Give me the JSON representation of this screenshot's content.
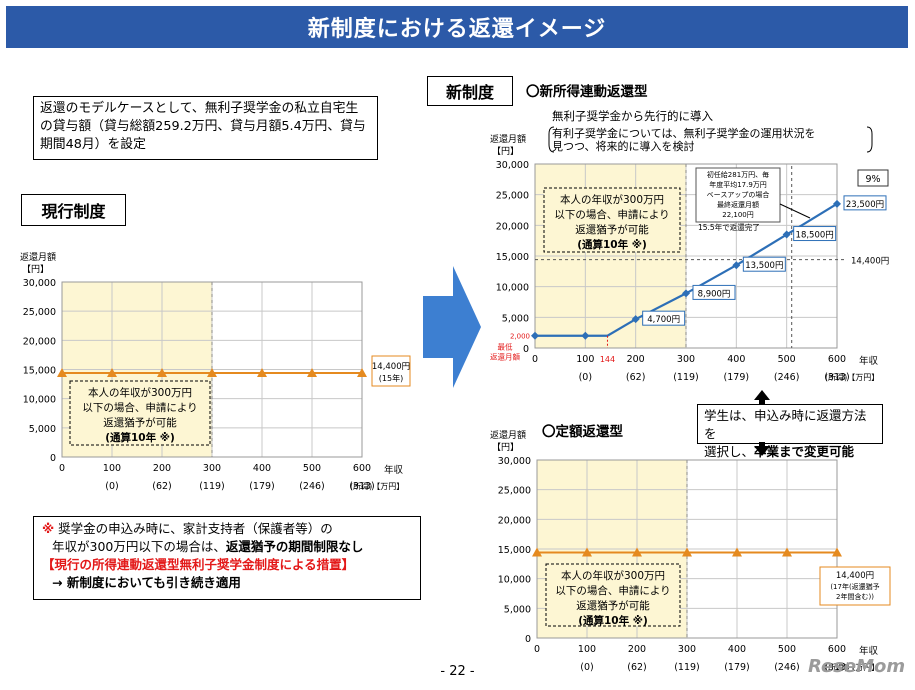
{
  "banner": {
    "title": "新制度における返還イメージ"
  },
  "model_case": {
    "text": "返還のモデルケースとして、無利子奨学金の私立自宅生の貸与額（貸与総額259.2万円、貸与月額5.4万円、貸与期間48月）を設定"
  },
  "current_system": {
    "label": "現行制度"
  },
  "new_system": {
    "label": "新制度"
  },
  "note": {
    "mark": "※",
    "line1": "奨学金の申込み時に、家計支持者（保護者等）の",
    "line2_pre": "年収が300万円以下の場合は、",
    "line2_bold": "返還猶予の期間制限なし",
    "line3": "【現行の所得連動返還型無利子奨学金制度による措置】",
    "line4_pre": "→ 新制度においても",
    "line4_bold": "引き続き適用"
  },
  "choice_box": {
    "line1": "学生は、申込み時に返還方法を",
    "line2_pre": "選択し、",
    "line2_bold": "卒業まで変更可能"
  },
  "colors": {
    "banner": "#2c5aa8",
    "series_blue": "#2d6fb7",
    "series_orange": "#e58a1f",
    "shade": "#fdf6d3",
    "red": "#e31919",
    "arrow": "#3d7fd1"
  },
  "page_number": "- 22 -",
  "watermark": "ReseMom",
  "chart_data": [
    {
      "id": "current",
      "type": "line",
      "ylabel": "返還月額\n【円】",
      "xlabel_line1": "年収",
      "xlabel_line2": "(所得)【万円】",
      "x": [
        0,
        100,
        200,
        300,
        400,
        500,
        600
      ],
      "x_income": [
        "(0)",
        "(62)",
        "(119)",
        "(179)",
        "(246)",
        "(313)"
      ],
      "ylim": [
        0,
        30000
      ],
      "yticks": [
        "30,000",
        "25,000",
        "20,000",
        "15,000",
        "10,000",
        "5,000",
        "0"
      ],
      "series": [
        {
          "values": [
            14400,
            14400,
            14400,
            14400,
            14400,
            14400,
            14400
          ]
        }
      ],
      "end_label": {
        "line1": "14,400円",
        "line2": "(15年)"
      },
      "deferral": {
        "lines": [
          "本人の年収が300万円",
          "以下の場合、申請により",
          "返還猶予が可能",
          "(通算10年 ※)"
        ]
      }
    },
    {
      "id": "income_linked",
      "type": "line",
      "title": "〇新所得連動返還型",
      "subtitle_line1": "無利子奨学金から先行的に導入",
      "subtitle_line2": "有利子奨学金については、無利子奨学金の運用状況を",
      "subtitle_line3": "見つつ、将来的に導入を検討",
      "ylabel": "返還月額\n【円】",
      "xlabel_line1": "年収",
      "xlabel_line2": "(所得)【万円】",
      "x": [
        0,
        100,
        144,
        200,
        300,
        400,
        500,
        600
      ],
      "x_income": [
        "(0)",
        "(62)",
        "(119)",
        "(179)",
        "(246)",
        "(313)"
      ],
      "ylim": [
        0,
        30000
      ],
      "yticks": [
        "30,000",
        "25,000",
        "20,000",
        "15,000",
        "10,000",
        "5,000",
        "0"
      ],
      "series": [
        {
          "values": [
            2000,
            2000,
            2000,
            4700,
            8900,
            13500,
            18500,
            23500
          ],
          "x": [
            0,
            100,
            144,
            200,
            300,
            400,
            500,
            600
          ]
        }
      ],
      "point_labels": [
        "4,700円",
        "8,900円",
        "13,500円",
        "18,500円",
        "23,500円"
      ],
      "min_label": {
        "line1": "最低",
        "line2": "返還月額",
        "value": "2,000"
      },
      "x144": "144",
      "ref_14400": "14,400円",
      "rate": "9%",
      "annotation": [
        "初任給281万円、毎",
        "年度平均17.9万円",
        "ベースアップの場合",
        "最終返還月額",
        "22,100円"
      ],
      "annotation2": "15.5年で返還完了",
      "deferral": {
        "lines": [
          "本人の年収が300万円",
          "以下の場合、申請により",
          "返還猶予が可能",
          "(通算10年 ※)"
        ]
      }
    },
    {
      "id": "fixed",
      "type": "line",
      "title": "〇定額返還型",
      "ylabel": "返還月額\n【円】",
      "xlabel_line1": "年収",
      "xlabel_line2": "(所得)【万円】",
      "x": [
        0,
        100,
        200,
        300,
        400,
        500,
        600
      ],
      "x_income": [
        "(0)",
        "(62)",
        "(119)",
        "(179)",
        "(246)",
        "(313)"
      ],
      "ylim": [
        0,
        30000
      ],
      "yticks": [
        "30,000",
        "25,000",
        "20,000",
        "15,000",
        "10,000",
        "5,000",
        "0"
      ],
      "series": [
        {
          "values": [
            14400,
            14400,
            14400,
            14400,
            14400,
            14400,
            14400
          ]
        }
      ],
      "end_label": {
        "line1": "14,400円",
        "line2": "(17年(返還猶予",
        "line3": "2年間含む))"
      },
      "deferral": {
        "lines": [
          "本人の年収が300万円",
          "以下の場合、申請により",
          "返還猶予が可能",
          "(通算10年 ※)"
        ]
      }
    }
  ]
}
